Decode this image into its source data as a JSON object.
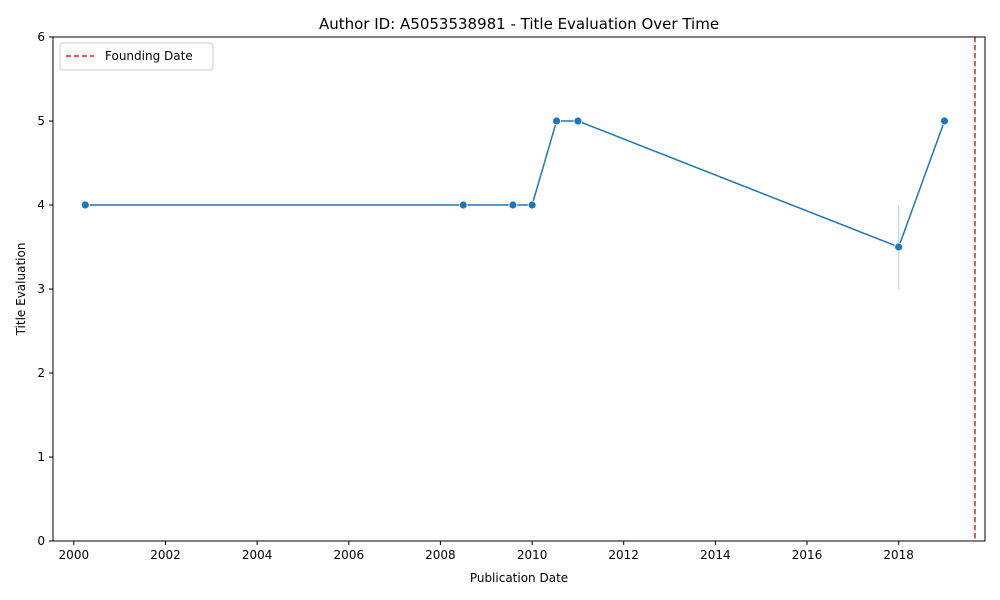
{
  "chart_data": {
    "type": "line",
    "title": "Author ID: A5053538981 - Title Evaluation Over Time",
    "xlabel": "Publication Date",
    "ylabel": "Title Evaluation",
    "xlim": [
      "1999-07-19",
      "2019-11-20"
    ],
    "ylim": [
      0,
      6
    ],
    "x_ticks": [
      "2000",
      "2002",
      "2004",
      "2006",
      "2008",
      "2010",
      "2012",
      "2014",
      "2016",
      "2018"
    ],
    "y_ticks": [
      "0",
      "1",
      "2",
      "3",
      "4",
      "5",
      "6"
    ],
    "grid": false,
    "series": [
      {
        "color": "#1f77b4",
        "marker": "circle",
        "points": [
          {
            "x": "2000-04-01",
            "y": 4
          },
          {
            "x": "2008-07-01",
            "y": 4
          },
          {
            "x": "2009-08-01",
            "y": 4
          },
          {
            "x": "2010-01-01",
            "y": 4
          },
          {
            "x": "2010-07-15",
            "y": 5
          },
          {
            "x": "2011-01-01",
            "y": 5
          },
          {
            "x": "2018-01-01",
            "y": 3.5
          },
          {
            "x": "2019-01-01",
            "y": 5
          }
        ],
        "error_bars": [
          {
            "x": "2018-01-01",
            "low": 3,
            "high": 4
          }
        ]
      }
    ],
    "reference_lines": [
      {
        "orientation": "vertical",
        "x": "2019-09-01",
        "color": "#d62728",
        "style": "dashed",
        "label": "Founding Date"
      }
    ],
    "legend": {
      "position": "top-left",
      "entries": [
        "Founding Date"
      ]
    }
  }
}
